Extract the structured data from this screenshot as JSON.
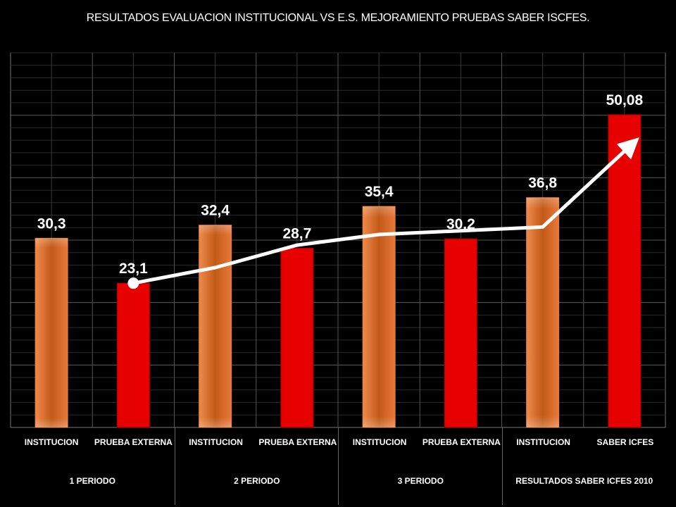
{
  "title": "RESULTADOS EVALUACION INSTITUCIONAL VS E.S. MEJORAMIENTO PRUEBAS SABER ISCFES.",
  "chart_data": {
    "type": "bar",
    "title": "RESULTADOS EVALUACION INSTITUCIONAL VS E.S. MEJORAMIENTO PRUEBAS SABER ISCFES.",
    "categories": [
      "INSTITUCION",
      "PRUEBA EXTERNA",
      "INSTITUCION",
      "PRUEBA EXTERNA",
      "INSTITUCION",
      "PRUEBA EXTERNA",
      "INSTITUCION",
      "SABER ICFES"
    ],
    "groups": [
      "1 PERIODO",
      "2 PERIODO",
      "3 PERIODO",
      "RESULTADOS SABER ICFES 2010"
    ],
    "values": [
      30.3,
      23.1,
      32.4,
      28.7,
      35.4,
      30.2,
      36.8,
      50.08
    ],
    "value_labels": [
      "30,3",
      "23,1",
      "32,4",
      "28,7",
      "35,4",
      "30,2",
      "36,8",
      "50,08"
    ],
    "bar_colors": [
      "#d2691e",
      "#e60000",
      "#d2691e",
      "#e60000",
      "#d2691e",
      "#e60000",
      "#d2691e",
      "#e60000"
    ],
    "trend_line": {
      "color": "#ffffff",
      "values": [
        23.1,
        25.6,
        29.2,
        30.9,
        31.5,
        32.1,
        45.3
      ]
    },
    "ylim": [
      0,
      60
    ],
    "grid": true
  }
}
